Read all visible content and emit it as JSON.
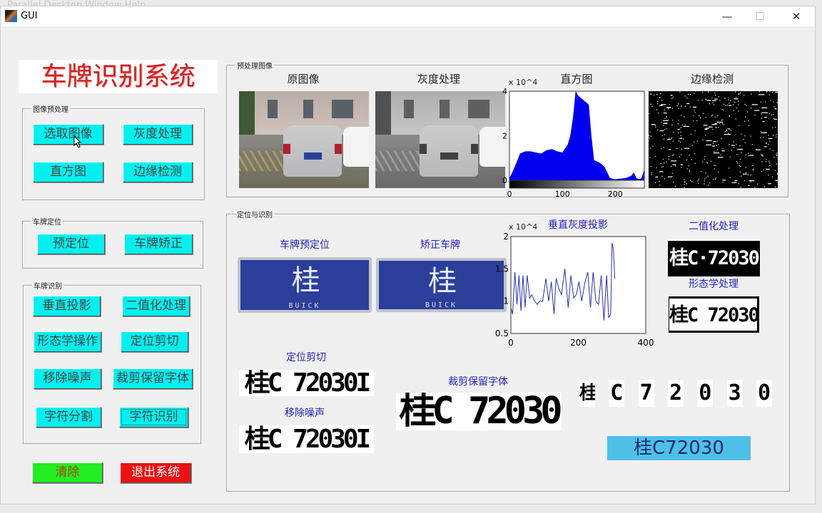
{
  "background_menu": "Parallel  Desktop  Window  Help",
  "window": {
    "title": "GUI",
    "minimize": "—",
    "maximize": "☐",
    "close": "✕"
  },
  "app_title": "车牌识别系统",
  "colors": {
    "button": "#00f0f0",
    "clear": "#22ee22",
    "exit": "#ee1111",
    "result": "#4ec0e8",
    "title_red": "#d42020",
    "label_blue": "#2222bb",
    "histogram": "#0000ee"
  },
  "panels": {
    "preprocess": {
      "title": "图像预处理",
      "buttons": [
        "选取图像",
        "灰度处理",
        "直方图",
        "边缘检测"
      ]
    },
    "locate": {
      "title": "车牌定位",
      "buttons": [
        "预定位",
        "车牌矫正"
      ]
    },
    "recognize": {
      "title": "车牌识别",
      "buttons": [
        "垂直投影",
        "二值化处理",
        "形态学操作",
        "定位剪切",
        "移除噪声",
        "裁剪保留字体",
        "字符分割",
        "字符识别"
      ]
    },
    "clear": "清除",
    "exit": "退出系统"
  },
  "preview": {
    "title": "预处理图像",
    "original": "原图像",
    "gray": "灰度处理",
    "histogram": "直方图",
    "edge": "边缘检测"
  },
  "locrec": {
    "title": "定位与识别",
    "prelocate": "车牌预定位",
    "corrected": "矫正车牌",
    "projection": "垂直灰度投影",
    "binary": "二值化处理",
    "morph": "形态学处理",
    "crop": "定位剪切",
    "denoise": "移除噪声",
    "keep": "裁剪保留字体"
  },
  "plates": {
    "color": "桂C·72030",
    "brand": "BUICK",
    "binary": "桂C·72030",
    "morph": "桂C 72030",
    "crop": "桂C 72030I",
    "denoise": "桂C 72030I",
    "keep": "桂C 72030",
    "chars": [
      "桂",
      "C",
      "7",
      "2",
      "0",
      "3",
      "0"
    ]
  },
  "result": "桂C72030",
  "chart_data": [
    {
      "type": "area",
      "title": "直方图",
      "exponent_label": "x 10^4",
      "xlim": [
        0,
        255
      ],
      "ylim": [
        0,
        4
      ],
      "xticks": [
        "0",
        "100",
        "200"
      ],
      "yticks": [
        "0",
        "2",
        "4"
      ],
      "x": [
        0,
        10,
        20,
        30,
        40,
        50,
        60,
        70,
        80,
        90,
        100,
        110,
        115,
        120,
        125,
        130,
        140,
        150,
        155,
        160,
        170,
        180,
        190,
        200,
        220,
        230,
        235,
        240,
        245,
        250,
        255
      ],
      "y": [
        0.1,
        0.6,
        1.2,
        1.3,
        1.3,
        1.25,
        1.2,
        1.35,
        1.4,
        1.3,
        1.25,
        1.6,
        2.0,
        2.8,
        4.0,
        3.8,
        3.6,
        3.4,
        2.0,
        0.9,
        0.8,
        0.6,
        0.1,
        0.05,
        0.1,
        0.2,
        0.35,
        0.1,
        0.05,
        0.1,
        0.5
      ],
      "colorbar": "grayscale"
    },
    {
      "type": "line",
      "title": "垂直灰度投影",
      "exponent_label": "x 10^4",
      "xlim": [
        0,
        400
      ],
      "ylim": [
        0.5,
        2
      ],
      "xticks": [
        "0",
        "200",
        "400"
      ],
      "yticks": [
        "0.5",
        "1",
        "1.5",
        "2"
      ],
      "x": [
        0,
        5,
        12,
        18,
        24,
        30,
        36,
        42,
        48,
        56,
        62,
        70,
        78,
        86,
        94,
        104,
        112,
        120,
        128,
        134,
        142,
        150,
        160,
        170,
        178,
        186,
        194,
        202,
        210,
        220,
        228,
        236,
        244,
        252,
        260,
        268,
        276,
        284,
        290,
        296,
        300,
        304,
        308
      ],
      "y": [
        0.9,
        0.8,
        1.45,
        0.95,
        1.4,
        0.85,
        1.4,
        0.9,
        1.4,
        1.05,
        1.1,
        1.0,
        0.95,
        1.0,
        1.0,
        1.35,
        1.0,
        1.3,
        0.8,
        1.35,
        1.2,
        1.1,
        1.5,
        0.9,
        1.4,
        1.05,
        1.1,
        1.3,
        1.0,
        1.3,
        1.45,
        0.9,
        1.45,
        1.0,
        0.95,
        1.4,
        0.7,
        1.4,
        0.75,
        0.8,
        1.9,
        1.8,
        1.35
      ]
    }
  ]
}
